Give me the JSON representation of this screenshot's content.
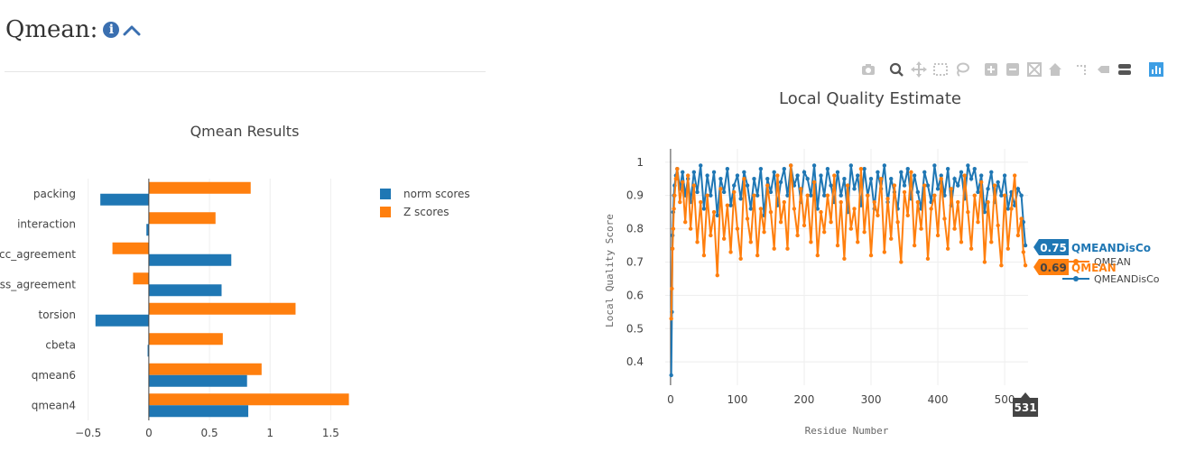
{
  "page": {
    "title": "Qmean:"
  },
  "colors": {
    "blue": "#1f77b4",
    "orange": "#ff7f0e",
    "grid": "#eeeeee",
    "axis": "#444444"
  },
  "modebar": {
    "icons": [
      "camera-icon",
      "zoom-icon",
      "pan-icon",
      "box-select-icon",
      "lasso-icon",
      "zoom-in-icon",
      "zoom-out-icon",
      "autoscale-icon",
      "home-icon",
      "spike-lines-icon",
      "hover-closest-icon",
      "hover-compare-icon",
      "plotly-logo-icon"
    ]
  },
  "chart_data": [
    {
      "type": "bar",
      "orientation": "horizontal",
      "title": "Qmean Results",
      "categories": [
        "packing",
        "interaction",
        "cc_agreement",
        "ss_agreement",
        "torsion",
        "cbeta",
        "qmean6",
        "qmean4"
      ],
      "category_labels": [
        "packing",
        "interaction",
        "cc_agreement",
        "ss_agreement",
        "torsion",
        "cbeta",
        "qmean6",
        "qmean4"
      ],
      "series": [
        {
          "name": "norm scores",
          "color": "#1f77b4",
          "values": [
            -0.4,
            -0.02,
            0.68,
            0.6,
            -0.44,
            -0.01,
            0.81,
            0.82
          ]
        },
        {
          "name": "Z scores",
          "color": "#ff7f0e",
          "values": [
            0.84,
            0.55,
            -0.3,
            -0.13,
            1.21,
            0.61,
            0.93,
            1.65
          ]
        }
      ],
      "xlim": [
        -0.55,
        1.75
      ],
      "xticks": [
        -0.5,
        0,
        0.5,
        1,
        1.5
      ],
      "xtick_labels": [
        "−0.5",
        "0",
        "0.5",
        "1",
        "1.5"
      ],
      "grid": true,
      "legend": "top-right"
    },
    {
      "type": "line",
      "title": "Local Quality Estimate",
      "xlabel": "Residue Number",
      "ylabel": "Local Quality Score",
      "xlim": [
        -8,
        535
      ],
      "ylim": [
        0.33,
        1.04
      ],
      "xticks": [
        0,
        100,
        200,
        300,
        400,
        500
      ],
      "xtick_labels": [
        "0",
        "100",
        "200",
        "300",
        "400",
        "500"
      ],
      "yticks": [
        0.4,
        0.5,
        0.6,
        0.7,
        0.8,
        0.9,
        1
      ],
      "ytick_labels": [
        "0.4",
        "0.5",
        "0.6",
        "0.7",
        "0.8",
        "0.9",
        "1"
      ],
      "grid": true,
      "legend": "right",
      "series": [
        {
          "name": "QMEANDisCo",
          "color": "#1f77b4",
          "x": [
            1,
            2,
            3,
            4,
            5,
            6,
            8,
            10,
            14,
            18,
            22,
            26,
            30,
            35,
            40,
            45,
            50,
            55,
            60,
            65,
            70,
            75,
            80,
            85,
            90,
            95,
            100,
            105,
            110,
            115,
            120,
            125,
            130,
            135,
            140,
            145,
            150,
            155,
            160,
            165,
            170,
            175,
            180,
            185,
            190,
            195,
            200,
            205,
            210,
            215,
            220,
            225,
            230,
            235,
            240,
            245,
            250,
            255,
            260,
            265,
            270,
            275,
            280,
            285,
            290,
            295,
            300,
            305,
            310,
            315,
            320,
            325,
            330,
            335,
            340,
            345,
            350,
            355,
            360,
            365,
            370,
            375,
            380,
            385,
            390,
            395,
            400,
            405,
            410,
            415,
            420,
            425,
            430,
            435,
            440,
            445,
            450,
            455,
            460,
            465,
            470,
            475,
            480,
            485,
            490,
            495,
            500,
            505,
            510,
            515,
            520,
            525,
            528,
            531
          ],
          "y": [
            0.36,
            0.55,
            0.78,
            0.85,
            0.9,
            0.93,
            0.96,
            0.98,
            0.92,
            0.97,
            0.9,
            0.95,
            0.88,
            0.97,
            0.91,
            0.99,
            0.86,
            0.96,
            0.9,
            0.97,
            0.84,
            0.95,
            0.91,
            0.98,
            0.87,
            0.93,
            0.96,
            0.89,
            0.97,
            0.93,
            0.86,
            0.95,
            0.9,
            0.98,
            0.84,
            0.95,
            0.91,
            0.97,
            0.87,
            0.94,
            0.98,
            0.9,
            0.99,
            0.93,
            0.96,
            0.88,
            0.97,
            0.95,
            0.9,
            0.99,
            0.86,
            0.96,
            0.9,
            0.98,
            0.93,
            0.88,
            0.97,
            0.9,
            0.95,
            0.85,
            0.99,
            0.92,
            0.96,
            0.87,
            0.98,
            0.9,
            0.95,
            0.86,
            0.97,
            0.92,
            0.99,
            0.88,
            0.95,
            0.91,
            0.86,
            0.97,
            0.93,
            0.98,
            0.89,
            0.96,
            0.91,
            0.86,
            0.97,
            0.93,
            0.88,
            0.99,
            0.92,
            0.96,
            0.9,
            0.98,
            0.87,
            0.95,
            0.93,
            0.97,
            0.89,
            0.99,
            0.95,
            0.98,
            0.91,
            0.96,
            0.85,
            0.92,
            0.97,
            0.88,
            0.94,
            0.9,
            0.96,
            0.86,
            0.91,
            0.87,
            0.92,
            0.9,
            0.82,
            0.75
          ]
        },
        {
          "name": "QMEAN",
          "color": "#ff7f0e",
          "x": [
            1,
            2,
            3,
            4,
            5,
            6,
            8,
            10,
            14,
            18,
            22,
            26,
            30,
            35,
            40,
            45,
            50,
            55,
            60,
            65,
            70,
            75,
            80,
            85,
            90,
            95,
            100,
            105,
            110,
            115,
            120,
            125,
            130,
            135,
            140,
            145,
            150,
            155,
            160,
            165,
            170,
            175,
            180,
            185,
            190,
            195,
            200,
            205,
            210,
            215,
            220,
            225,
            230,
            235,
            240,
            245,
            250,
            255,
            260,
            265,
            270,
            275,
            280,
            285,
            290,
            295,
            300,
            305,
            310,
            315,
            320,
            325,
            330,
            335,
            340,
            345,
            350,
            355,
            360,
            365,
            370,
            375,
            380,
            385,
            390,
            395,
            400,
            405,
            410,
            415,
            420,
            425,
            430,
            435,
            440,
            445,
            450,
            455,
            460,
            465,
            470,
            475,
            480,
            485,
            490,
            495,
            500,
            505,
            510,
            515,
            520,
            525,
            528,
            531
          ],
          "y": [
            0.53,
            0.62,
            0.74,
            0.8,
            0.86,
            0.9,
            0.95,
            0.98,
            0.88,
            0.94,
            0.82,
            0.96,
            0.8,
            0.93,
            0.76,
            0.88,
            0.72,
            0.9,
            0.78,
            0.85,
            0.66,
            0.92,
            0.77,
            0.87,
            0.73,
            0.91,
            0.8,
            0.71,
            0.95,
            0.83,
            0.76,
            0.9,
            0.72,
            0.86,
            0.79,
            0.93,
            0.85,
            0.74,
            0.96,
            0.82,
            0.88,
            0.74,
            0.99,
            0.86,
            0.78,
            0.92,
            0.81,
            0.9,
            0.76,
            0.94,
            0.72,
            0.85,
            0.79,
            0.9,
            0.82,
            0.96,
            0.75,
            0.88,
            0.71,
            0.93,
            0.8,
            0.86,
            0.76,
            0.98,
            0.79,
            0.9,
            0.72,
            0.88,
            0.84,
            0.95,
            0.73,
            0.89,
            0.77,
            0.93,
            0.82,
            0.7,
            0.91,
            0.84,
            0.97,
            0.75,
            0.88,
            0.8,
            0.93,
            0.71,
            0.86,
            0.9,
            0.78,
            0.95,
            0.83,
            0.74,
            0.92,
            0.8,
            0.88,
            0.76,
            0.96,
            0.85,
            0.74,
            0.9,
            0.82,
            0.94,
            0.7,
            0.88,
            0.76,
            0.93,
            0.81,
            0.69,
            0.9,
            0.74,
            0.86,
            0.96,
            0.78,
            0.83,
            0.73,
            0.69
          ]
        }
      ],
      "hover": {
        "x_label": "531",
        "labels": [
          {
            "series": "QMEANDisCo",
            "value": "0.75"
          },
          {
            "series": "QMEAN",
            "value": "0.69"
          }
        ]
      }
    }
  ]
}
